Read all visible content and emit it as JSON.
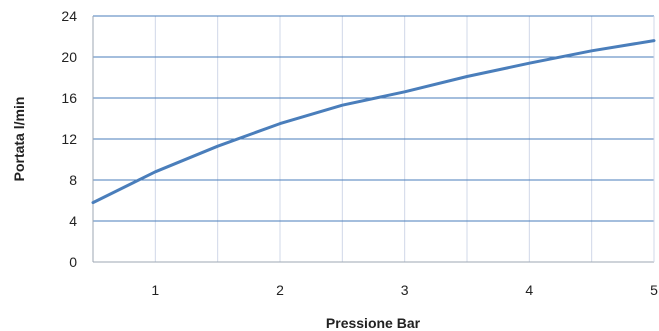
{
  "chart_data": {
    "type": "line",
    "title": "",
    "xlabel": "Pressione Bar",
    "ylabel": "Portata l/min",
    "xlim": [
      0.5,
      5
    ],
    "ylim": [
      0,
      24
    ],
    "x_ticks": [
      1,
      2,
      3,
      4,
      5
    ],
    "y_ticks": [
      0,
      4,
      8,
      12,
      16,
      20,
      24
    ],
    "x_minor_grid": [
      0.5,
      1.5,
      2.5,
      3.5,
      4.5
    ],
    "grid": "on",
    "legend": "none",
    "series": [
      {
        "color": "#4a7ebb",
        "x": [
          0.5,
          1.0,
          1.5,
          2.0,
          2.5,
          3.0,
          3.5,
          4.0,
          4.5,
          5.0
        ],
        "y": [
          5.8,
          8.8,
          11.3,
          13.5,
          15.3,
          16.6,
          18.1,
          19.4,
          20.6,
          21.6
        ]
      }
    ],
    "colors": {
      "grid_horizontal": "#4a7ebb",
      "grid_vertical": "#d0d8e8",
      "axis": "#9ea7b3",
      "text": "#222222"
    }
  }
}
